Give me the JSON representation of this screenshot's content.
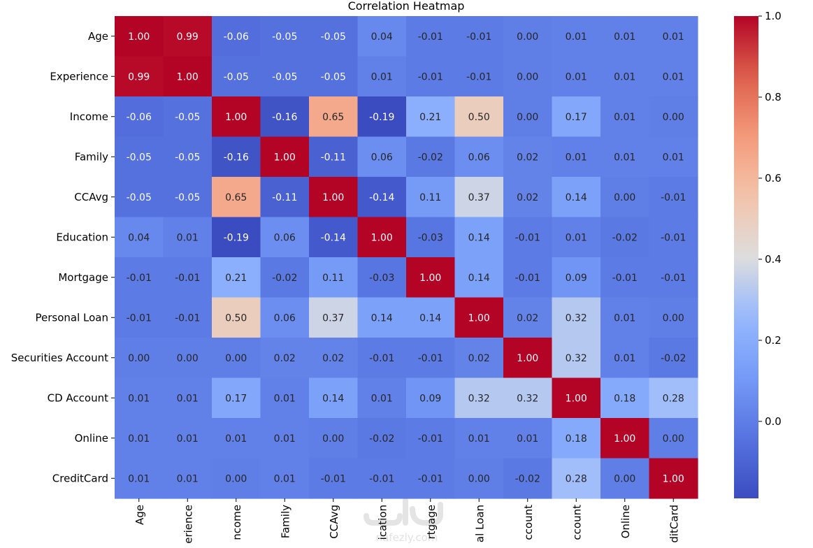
{
  "chart_data": {
    "type": "heatmap",
    "title": "Correlation Heatmap",
    "colormap": "coolwarm",
    "row_labels": [
      "Age",
      "Experience",
      "Income",
      "Family",
      "CCAvg",
      "Education",
      "Mortgage",
      "Personal Loan",
      "Securities Account",
      "CD Account",
      "Online",
      "CreditCard"
    ],
    "col_labels_visible": [
      "Age",
      "erience",
      "ncome",
      "Family",
      "CCAvg",
      "ication",
      "rtgage",
      "al Loan",
      "ccount",
      "ccount",
      "Online",
      "ditCard"
    ],
    "values": [
      [
        1.0,
        0.99,
        -0.06,
        -0.05,
        -0.05,
        0.04,
        -0.01,
        -0.01,
        -0.0,
        0.01,
        0.01,
        0.01
      ],
      [
        0.99,
        1.0,
        -0.05,
        -0.05,
        -0.05,
        0.01,
        -0.01,
        -0.01,
        -0.0,
        0.01,
        0.01,
        0.01
      ],
      [
        -0.06,
        -0.05,
        1.0,
        -0.16,
        0.65,
        -0.19,
        0.21,
        0.5,
        -0.0,
        0.17,
        0.01,
        -0.0
      ],
      [
        -0.05,
        -0.05,
        -0.16,
        1.0,
        -0.11,
        0.06,
        -0.02,
        0.06,
        0.02,
        0.01,
        0.01,
        0.01
      ],
      [
        -0.05,
        -0.05,
        0.65,
        -0.11,
        1.0,
        -0.14,
        0.11,
        0.37,
        0.02,
        0.14,
        -0.0,
        -0.01
      ],
      [
        0.04,
        0.01,
        -0.19,
        0.06,
        -0.14,
        1.0,
        -0.03,
        0.14,
        -0.01,
        0.01,
        -0.02,
        -0.01
      ],
      [
        -0.01,
        -0.01,
        0.21,
        -0.02,
        0.11,
        -0.03,
        1.0,
        0.14,
        -0.01,
        0.09,
        -0.01,
        -0.01
      ],
      [
        -0.01,
        -0.01,
        0.5,
        0.06,
        0.37,
        0.14,
        0.14,
        1.0,
        0.02,
        0.32,
        0.01,
        0.0
      ],
      [
        -0.0,
        -0.0,
        -0.0,
        0.02,
        0.02,
        -0.01,
        -0.01,
        0.02,
        1.0,
        0.32,
        0.01,
        -0.02
      ],
      [
        0.01,
        0.01,
        0.17,
        0.01,
        0.14,
        0.01,
        0.09,
        0.32,
        0.32,
        1.0,
        0.18,
        0.28
      ],
      [
        0.01,
        0.01,
        0.01,
        0.01,
        -0.0,
        -0.02,
        -0.01,
        0.01,
        0.01,
        0.18,
        1.0,
        0.0
      ],
      [
        0.01,
        0.01,
        -0.0,
        0.01,
        -0.01,
        -0.01,
        -0.01,
        0.0,
        -0.02,
        0.28,
        0.0,
        1.0
      ]
    ],
    "value_range": [
      -0.19,
      1.0
    ],
    "colorbar_ticks": [
      0.0,
      0.2,
      0.4,
      0.6,
      0.8,
      1.0
    ],
    "colorbar_tick_labels": [
      "0.0",
      "0.2",
      "0.4",
      "0.6",
      "0.8",
      "1.0"
    ],
    "annotation_format": "0.00",
    "grid": false,
    "legend": "colorbar right"
  },
  "watermark": {
    "text": "nafezly.com"
  }
}
